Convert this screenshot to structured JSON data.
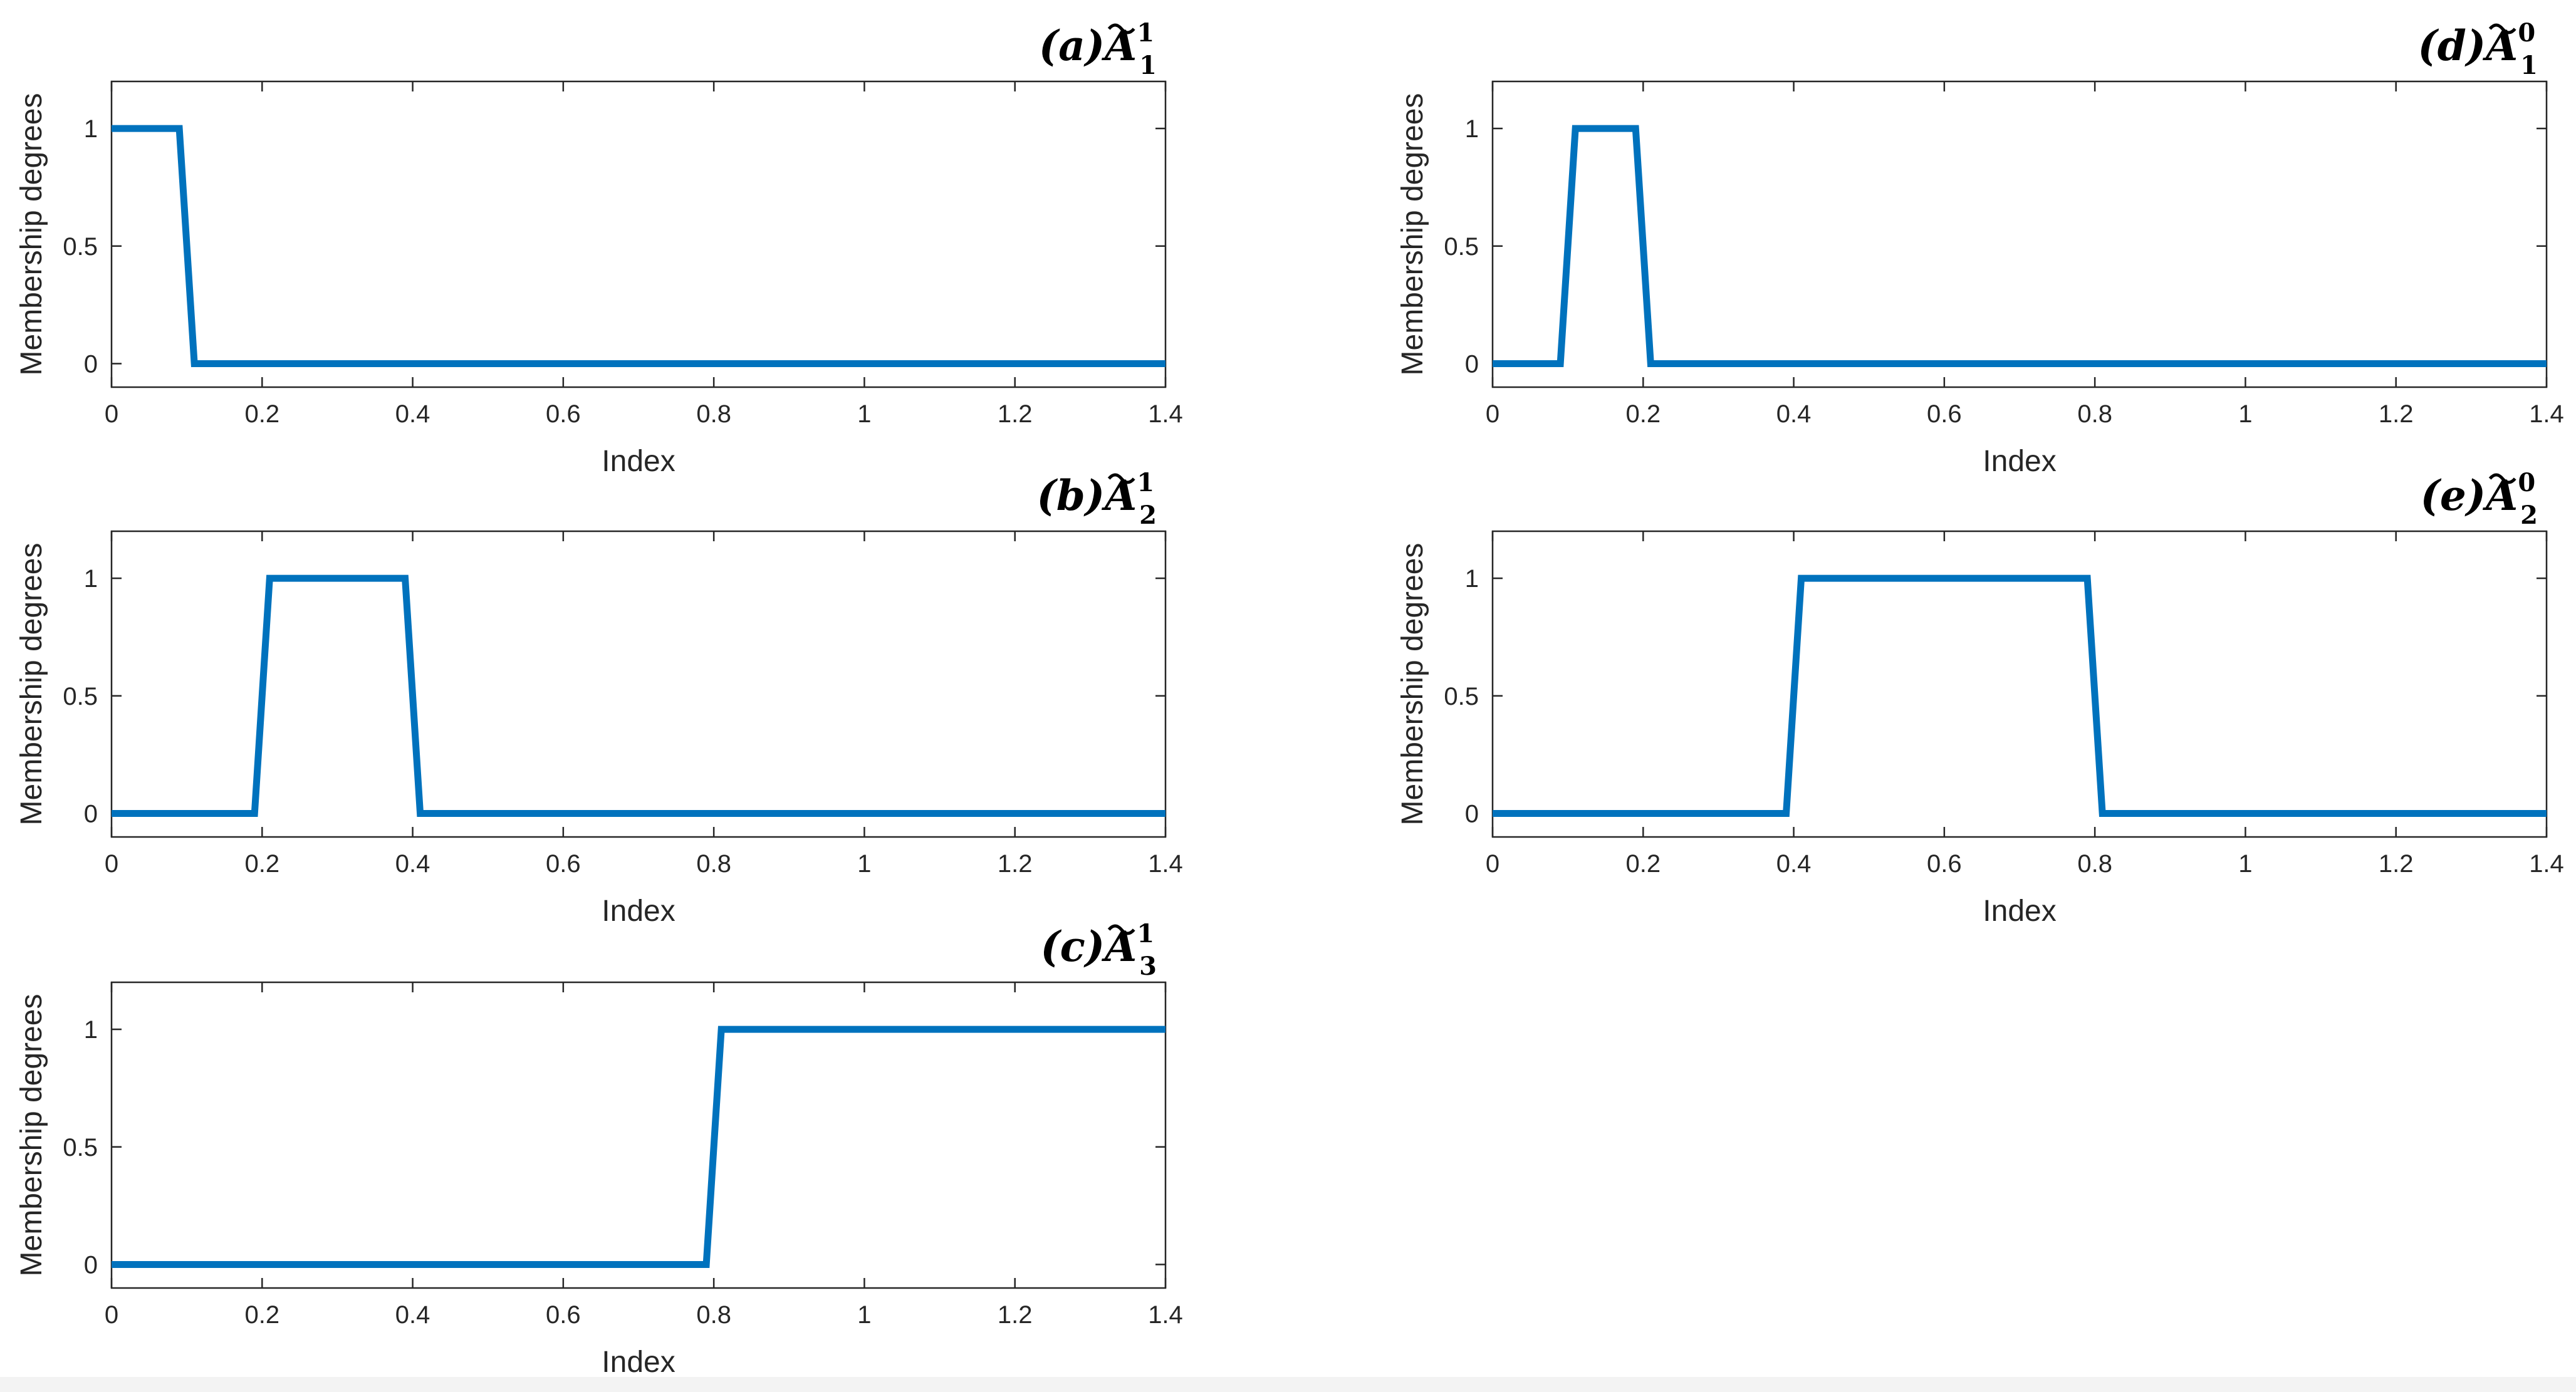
{
  "chart_data": [
    {
      "type": "line",
      "panel": "a",
      "title": {
        "letter": "a",
        "symbol": "A",
        "sub": "1",
        "sup": "1"
      },
      "xlabel": "Index",
      "ylabel": "Membership degrees",
      "xlim": [
        0,
        1.4
      ],
      "ylim": [
        -0.1,
        1.2
      ],
      "xticks": [
        0,
        0.2,
        0.4,
        0.6,
        0.8,
        1,
        1.2,
        1.4
      ],
      "xtick_labels": [
        "0",
        "0.2",
        "0.4",
        "0.6",
        "0.8",
        "1",
        "1.2",
        "1.4"
      ],
      "yticks": [
        0,
        0.5,
        1
      ],
      "ytick_labels": [
        "0",
        "0.5",
        "1"
      ],
      "series": [
        {
          "x": [
            0,
            0.09,
            0.11,
            1.4
          ],
          "y": [
            1,
            1,
            0,
            0
          ]
        }
      ]
    },
    {
      "type": "line",
      "panel": "b",
      "title": {
        "letter": "b",
        "symbol": "A",
        "sub": "2",
        "sup": "1"
      },
      "xlabel": "Index",
      "ylabel": "Membership degrees",
      "xlim": [
        0,
        1.4
      ],
      "ylim": [
        -0.1,
        1.2
      ],
      "xticks": [
        0,
        0.2,
        0.4,
        0.6,
        0.8,
        1,
        1.2,
        1.4
      ],
      "xtick_labels": [
        "0",
        "0.2",
        "0.4",
        "0.6",
        "0.8",
        "1",
        "1.2",
        "1.4"
      ],
      "yticks": [
        0,
        0.5,
        1
      ],
      "ytick_labels": [
        "0",
        "0.5",
        "1"
      ],
      "series": [
        {
          "x": [
            0,
            0.19,
            0.21,
            0.39,
            0.41,
            1.4
          ],
          "y": [
            0,
            0,
            1,
            1,
            0,
            0
          ]
        }
      ]
    },
    {
      "type": "line",
      "panel": "c",
      "title": {
        "letter": "c",
        "symbol": "A",
        "sub": "3",
        "sup": "1"
      },
      "xlabel": "Index",
      "ylabel": "Membership degrees",
      "xlim": [
        0,
        1.4
      ],
      "ylim": [
        -0.1,
        1.2
      ],
      "xticks": [
        0,
        0.2,
        0.4,
        0.6,
        0.8,
        1,
        1.2,
        1.4
      ],
      "xtick_labels": [
        "0",
        "0.2",
        "0.4",
        "0.6",
        "0.8",
        "1",
        "1.2",
        "1.4"
      ],
      "yticks": [
        0,
        0.5,
        1
      ],
      "ytick_labels": [
        "0",
        "0.5",
        "1"
      ],
      "series": [
        {
          "x": [
            0,
            0.79,
            0.81,
            1.4
          ],
          "y": [
            0,
            0,
            1,
            1
          ]
        }
      ]
    },
    {
      "type": "line",
      "panel": "d",
      "title": {
        "letter": "d",
        "symbol": "A",
        "sub": "1",
        "sup": "0"
      },
      "xlabel": "Index",
      "ylabel": "Membership degrees",
      "xlim": [
        0,
        1.4
      ],
      "ylim": [
        -0.1,
        1.2
      ],
      "xticks": [
        0,
        0.2,
        0.4,
        0.6,
        0.8,
        1,
        1.2,
        1.4
      ],
      "xtick_labels": [
        "0",
        "0.2",
        "0.4",
        "0.6",
        "0.8",
        "1",
        "1.2",
        "1.4"
      ],
      "yticks": [
        0,
        0.5,
        1
      ],
      "ytick_labels": [
        "0",
        "0.5",
        "1"
      ],
      "series": [
        {
          "x": [
            0,
            0.09,
            0.11,
            0.19,
            0.21,
            1.4
          ],
          "y": [
            0,
            0,
            1,
            1,
            0,
            0
          ]
        }
      ]
    },
    {
      "type": "line",
      "panel": "e",
      "title": {
        "letter": "e",
        "symbol": "A",
        "sub": "2",
        "sup": "0"
      },
      "xlabel": "Index",
      "ylabel": "Membership degrees",
      "xlim": [
        0,
        1.4
      ],
      "ylim": [
        -0.1,
        1.2
      ],
      "xticks": [
        0,
        0.2,
        0.4,
        0.6,
        0.8,
        1,
        1.2,
        1.4
      ],
      "xtick_labels": [
        "0",
        "0.2",
        "0.4",
        "0.6",
        "0.8",
        "1",
        "1.2",
        "1.4"
      ],
      "yticks": [
        0,
        0.5,
        1
      ],
      "ytick_labels": [
        "0",
        "0.5",
        "1"
      ],
      "series": [
        {
          "x": [
            0,
            0.39,
            0.41,
            0.79,
            0.81,
            1.4
          ],
          "y": [
            0,
            0,
            1,
            1,
            0,
            0
          ]
        }
      ]
    }
  ],
  "colors": {
    "series": "#0072bd",
    "axes": "#262626",
    "background": "#ffffff"
  },
  "grid": false
}
